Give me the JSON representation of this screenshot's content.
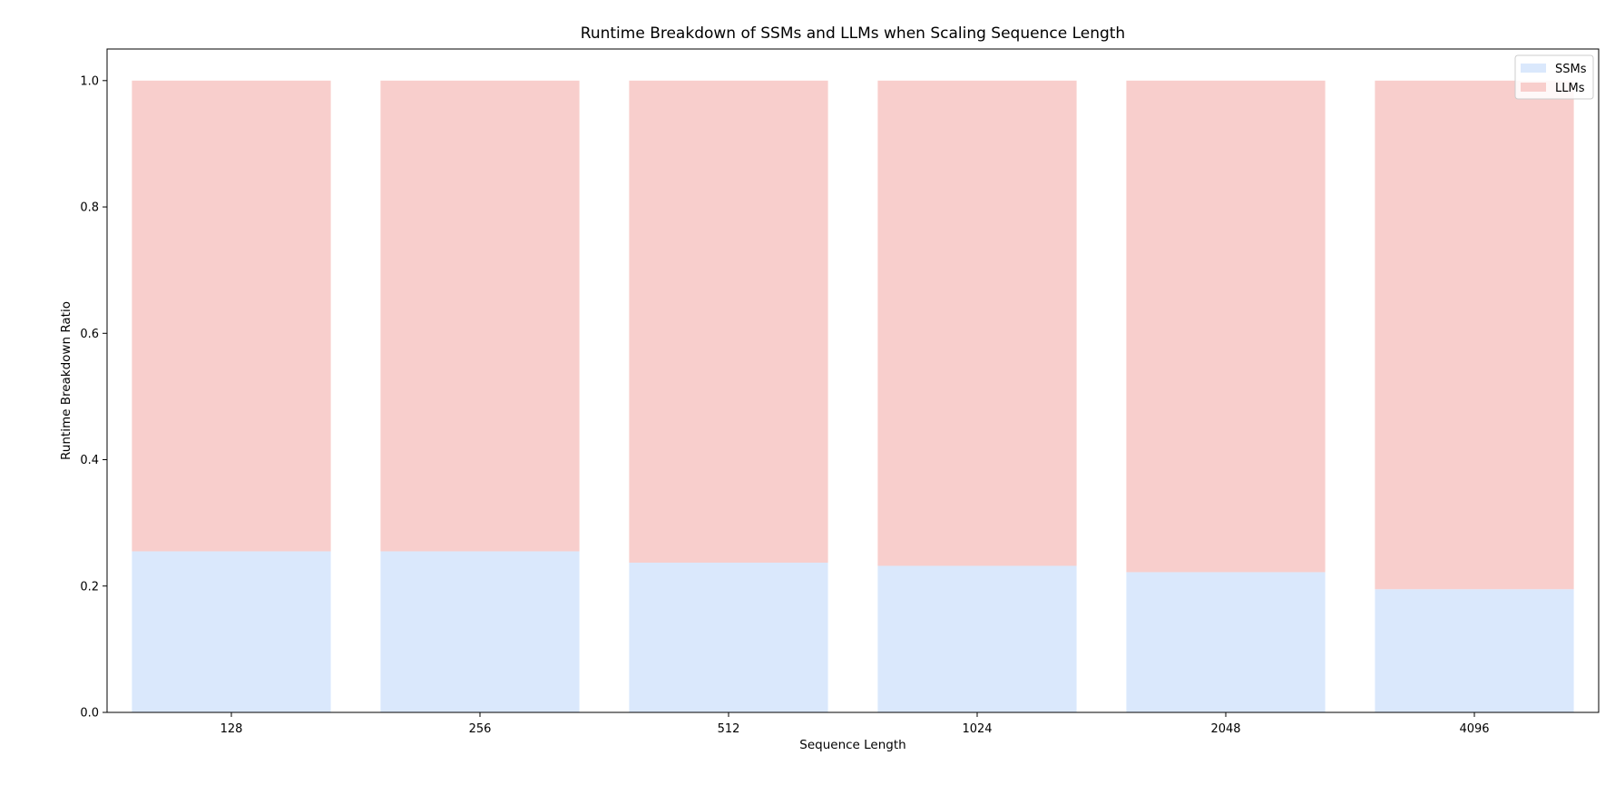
{
  "chart_data": {
    "type": "bar",
    "stacked": true,
    "title": "Runtime Breakdown of SSMs and LLMs when Scaling Sequence Length",
    "xlabel": "Sequence Length",
    "ylabel": "Runtime Breakdown Ratio",
    "categories": [
      "128",
      "256",
      "512",
      "1024",
      "2048",
      "4096"
    ],
    "series": [
      {
        "name": "SSMs",
        "color": "#dae8fc",
        "values": [
          0.255,
          0.255,
          0.237,
          0.232,
          0.222,
          0.195
        ]
      },
      {
        "name": "LLMs",
        "color": "#f8cecc",
        "values": [
          0.745,
          0.745,
          0.763,
          0.768,
          0.778,
          0.805
        ]
      }
    ],
    "ylim": [
      0,
      1.05
    ],
    "yticks": [
      "0.0",
      "0.2",
      "0.4",
      "0.6",
      "0.8",
      "1.0"
    ],
    "grid": false,
    "legend_position": "top-right"
  }
}
